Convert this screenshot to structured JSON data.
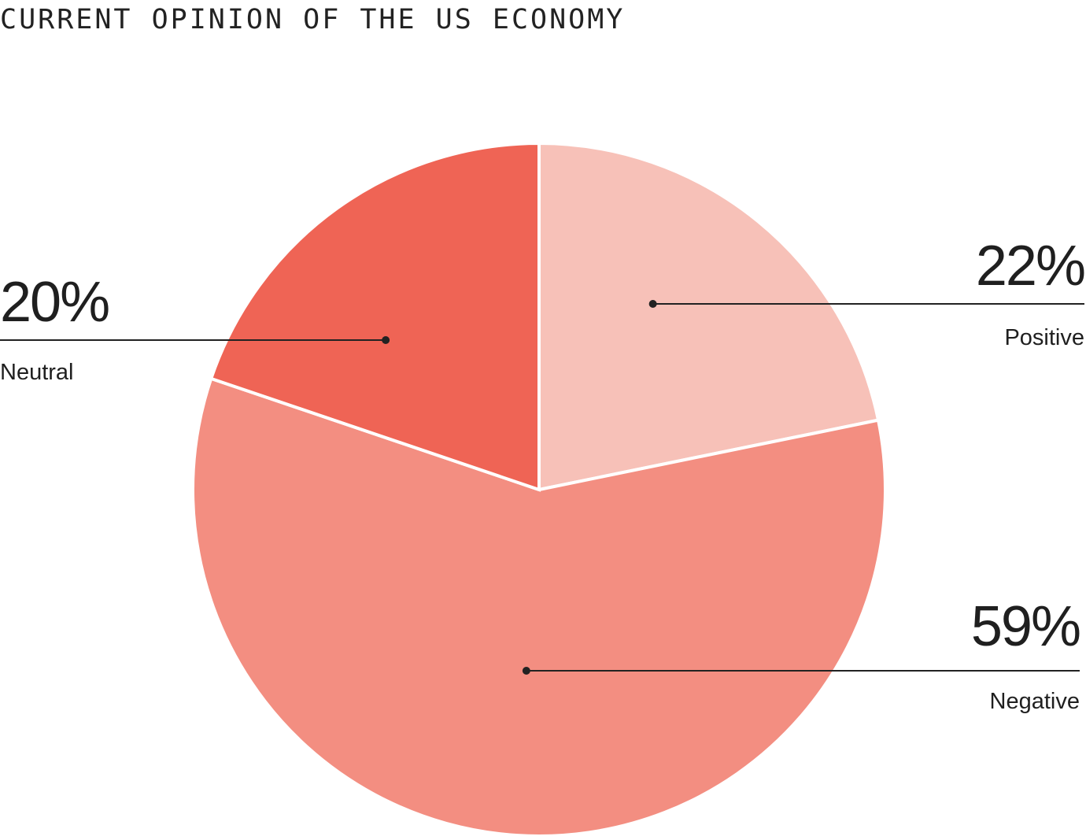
{
  "chart_data": {
    "type": "pie",
    "title": "CURRENT OPINION OF THE US ECONOMY",
    "categories": [
      "Positive",
      "Negative",
      "Neutral"
    ],
    "values": [
      22,
      59,
      20
    ],
    "value_labels": [
      "22%",
      "59%",
      "20%"
    ],
    "colors": [
      "#f7c1b8",
      "#f38e81",
      "#ef6455"
    ],
    "legend": "none"
  }
}
